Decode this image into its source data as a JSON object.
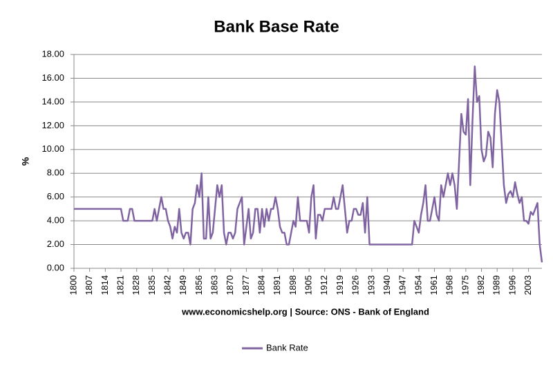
{
  "chart_data": {
    "type": "line",
    "title": "Bank Base Rate",
    "y_label": "%",
    "x_label": "www.economicshelp.org | Source: ONS - Bank of England",
    "x": [
      1800,
      1821,
      1822,
      1824,
      1825,
      1826,
      1827,
      1835,
      1836,
      1837,
      1839,
      1840,
      1841,
      1842,
      1843,
      1844,
      1845,
      1846,
      1847,
      1848,
      1849,
      1850,
      1851,
      1852,
      1853,
      1854,
      1855,
      1856,
      1857,
      1858,
      1859,
      1860,
      1861,
      1862,
      1863,
      1864,
      1865,
      1866,
      1867,
      1868,
      1869,
      1870,
      1871,
      1872,
      1873,
      1874,
      1875,
      1876,
      1877,
      1878,
      1879,
      1880,
      1881,
      1882,
      1883,
      1884,
      1885,
      1886,
      1887,
      1888,
      1889,
      1890,
      1891,
      1892,
      1893,
      1894,
      1895,
      1896,
      1897,
      1898,
      1899,
      1900,
      1901,
      1902,
      1903,
      1904,
      1905,
      1906,
      1907,
      1908,
      1909,
      1910,
      1911,
      1912,
      1913,
      1914,
      1915,
      1916,
      1917,
      1918,
      1919,
      1920,
      1921,
      1922,
      1923,
      1924,
      1925,
      1926,
      1927,
      1928,
      1929,
      1930,
      1931,
      1932,
      1951,
      1952,
      1953,
      1954,
      1955,
      1956,
      1957,
      1958,
      1959,
      1960,
      1961,
      1962,
      1963,
      1964,
      1965,
      1966,
      1967,
      1968,
      1969,
      1970,
      1971,
      1972,
      1973,
      1974,
      1975,
      1976,
      1977,
      1978,
      1979,
      1980,
      1981,
      1982,
      1983,
      1984,
      1985,
      1986,
      1987,
      1988,
      1989,
      1990,
      1991,
      1992,
      1993,
      1994,
      1995,
      1996,
      1997,
      1998,
      1999,
      2000,
      2001,
      2002,
      2003,
      2004,
      2005,
      2006,
      2007,
      2008,
      2009
    ],
    "series": [
      {
        "name": "Bank Rate",
        "color": "#8064a2",
        "values": [
          5,
          5,
          4,
          4,
          5,
          5,
          4,
          4,
          5,
          4,
          6,
          5,
          5,
          4,
          3.5,
          2.5,
          3.5,
          3,
          5,
          3,
          2.5,
          3,
          3,
          2,
          5,
          5.5,
          7,
          6,
          8,
          2.5,
          2.5,
          6,
          2.5,
          3,
          5,
          7,
          6,
          7,
          3,
          2,
          3,
          3,
          2.5,
          3,
          5,
          5.5,
          6,
          2,
          3.5,
          5,
          2.5,
          3,
          5,
          5,
          3,
          5,
          3.5,
          5,
          4,
          5,
          5,
          6,
          5,
          3.5,
          3,
          3,
          2,
          2,
          3,
          4,
          3.5,
          6,
          4,
          4,
          4,
          4,
          3,
          6,
          7,
          2.5,
          4.5,
          4.5,
          4,
          5,
          5,
          5,
          5,
          6,
          5,
          5,
          6,
          7,
          5,
          3,
          4,
          4,
          5,
          5,
          4.5,
          4.5,
          5.5,
          3,
          6,
          2,
          2,
          4,
          3.5,
          3,
          4.5,
          5.5,
          7,
          4,
          4,
          5,
          6,
          4.5,
          4,
          7,
          6,
          7,
          8,
          7,
          8,
          7,
          5,
          9,
          13,
          11.5,
          11.25,
          14.25,
          7,
          12.5,
          17,
          14,
          14.5,
          10,
          9,
          9.5,
          11.5,
          11,
          8.5,
          13,
          15,
          14,
          10.5,
          7,
          5.5,
          6.25,
          6.5,
          6,
          7.25,
          6.25,
          5.5,
          6,
          4,
          4,
          3.75,
          4.75,
          4.5,
          5,
          5.5,
          2,
          0.5
        ]
      }
    ],
    "xlim": [
      1800,
      2009
    ],
    "xticks": [
      1800,
      1807,
      1814,
      1821,
      1828,
      1835,
      1842,
      1849,
      1856,
      1863,
      1870,
      1877,
      1884,
      1891,
      1898,
      1905,
      1912,
      1919,
      1926,
      1933,
      1940,
      1947,
      1954,
      1961,
      1968,
      1975,
      1982,
      1989,
      1996,
      2003
    ],
    "ylim": [
      0,
      18
    ],
    "yticks": [
      {
        "value": 0,
        "label": "0.00"
      },
      {
        "value": 2,
        "label": "2.00"
      },
      {
        "value": 4,
        "label": "4.00"
      },
      {
        "value": 6,
        "label": "6.00"
      },
      {
        "value": 8,
        "label": "8.00"
      },
      {
        "value": 10,
        "label": "10.00"
      },
      {
        "value": 12,
        "label": "12.00"
      },
      {
        "value": 14,
        "label": "14.00"
      },
      {
        "value": 16,
        "label": "16.00"
      },
      {
        "value": 18,
        "label": "18.00"
      }
    ],
    "grid": true,
    "legend": "bottom"
  }
}
